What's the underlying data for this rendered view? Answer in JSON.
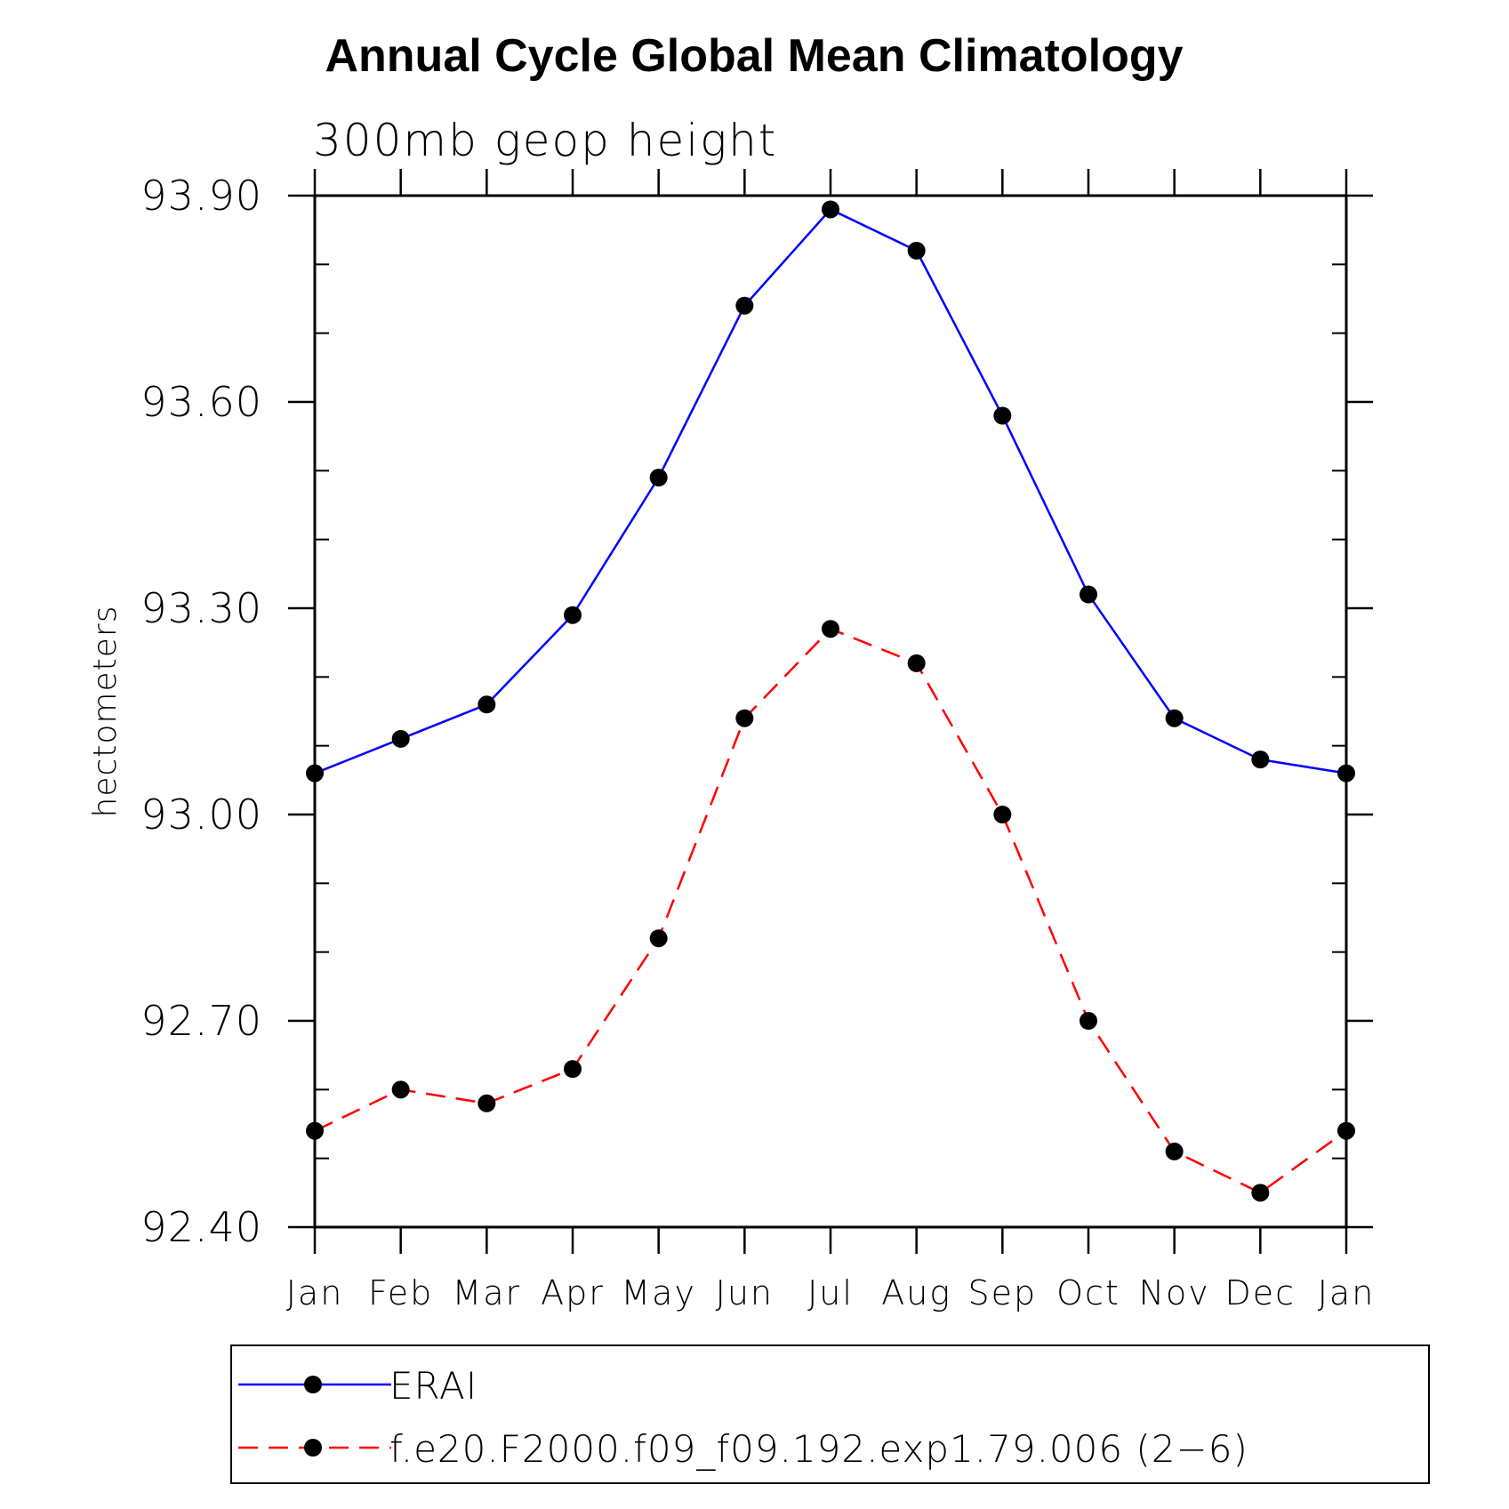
{
  "chart_data": {
    "type": "line",
    "title": "Annual Cycle Global Mean Climatology",
    "subtitle": "300mb geop height",
    "ylabel": "hectometers",
    "xlabel": "",
    "categories": [
      "Jan",
      "Feb",
      "Mar",
      "Apr",
      "May",
      "Jun",
      "Jul",
      "Aug",
      "Sep",
      "Oct",
      "Nov",
      "Dec",
      "Jan"
    ],
    "ylim": [
      92.4,
      93.9
    ],
    "yticks": [
      "93.90",
      "93.60",
      "93.30",
      "93.00",
      "92.70",
      "92.40"
    ],
    "series": [
      {
        "name": "ERAI",
        "color": "#0000ff",
        "dash": "solid",
        "marker": "filled-circle",
        "values": [
          93.06,
          93.11,
          93.16,
          93.29,
          93.49,
          93.74,
          93.88,
          93.82,
          93.58,
          93.32,
          93.14,
          93.08,
          93.06
        ]
      },
      {
        "name": "f.e20.F2000.f09_f09.192.exp1.79.006 (2−6)",
        "color": "#ff0000",
        "dash": "dashed",
        "marker": "filled-circle",
        "values": [
          92.54,
          92.6,
          92.58,
          92.63,
          92.82,
          93.14,
          93.27,
          93.22,
          93.0,
          92.7,
          92.51,
          92.45,
          92.54
        ]
      }
    ],
    "grid": false,
    "legend_position": "bottom"
  }
}
